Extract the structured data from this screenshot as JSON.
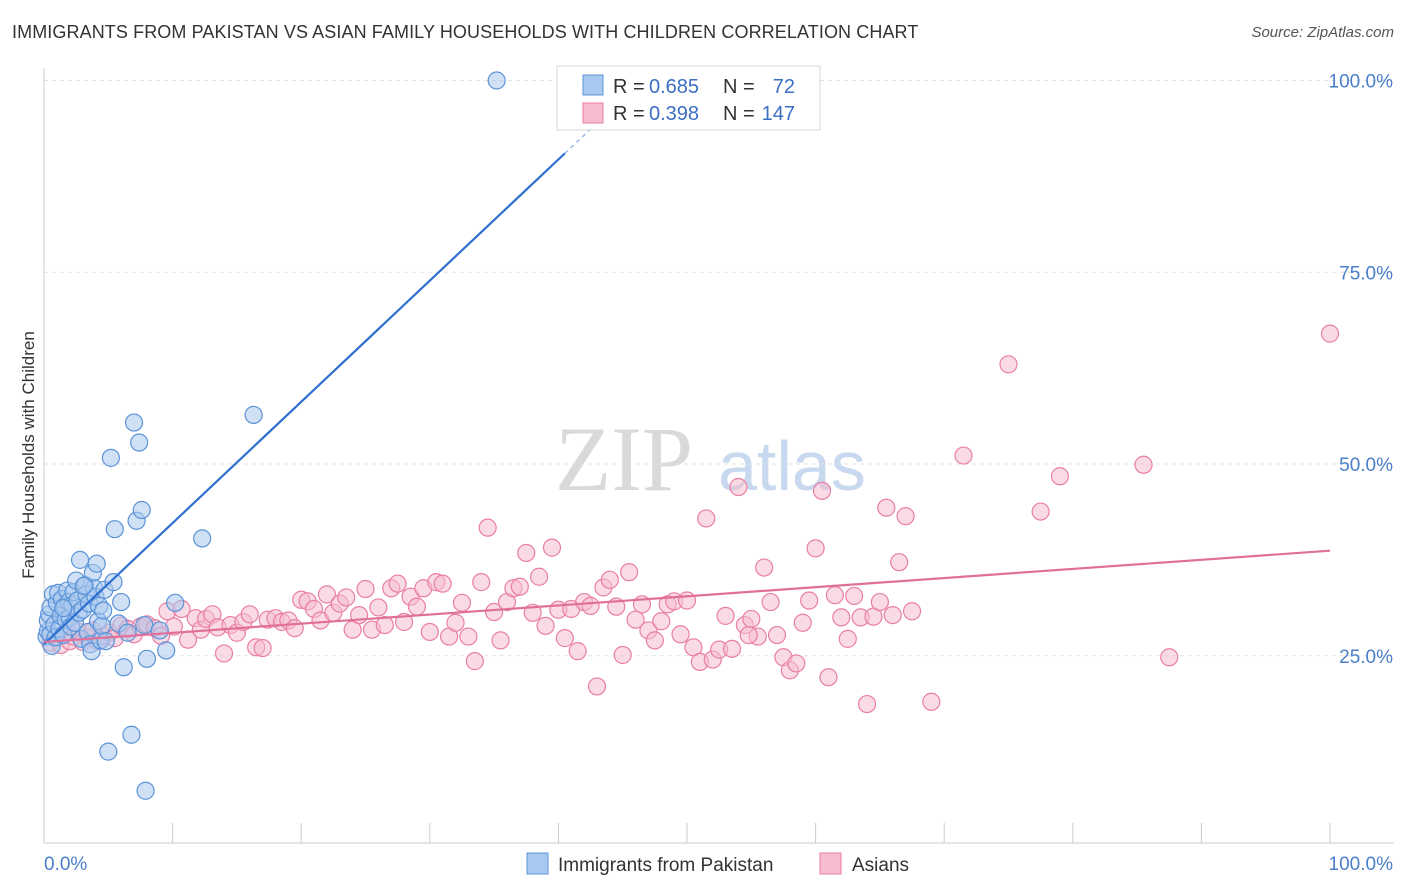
{
  "title": "IMMIGRANTS FROM PAKISTAN VS ASIAN FAMILY HOUSEHOLDS WITH CHILDREN CORRELATION CHART",
  "source": "Source: ZipAtlas.com",
  "watermark": {
    "zip": "ZIP",
    "atlas": "atlas"
  },
  "colors": {
    "blue_fill": "#a9c8ef",
    "blue_stroke": "#5b93d8",
    "blue_line": "#2e6fcf",
    "pink_fill": "#f6bdd0",
    "pink_stroke": "#e97fa4",
    "pink_line": "#e0709a",
    "tick_label": "#4a7ec9"
  },
  "legend_box": {
    "rows": [
      {
        "r_label": "R = ",
        "r_value": "0.685",
        "n_label": "N = ",
        "n_value": "72"
      },
      {
        "r_label": "R = ",
        "r_value": "0.398",
        "n_label": "N = ",
        "n_value": "147"
      }
    ]
  },
  "chart_data": {
    "type": "scatter",
    "title": "IMMIGRANTS FROM PAKISTAN VS ASIAN FAMILY HOUSEHOLDS WITH CHILDREN CORRELATION CHART",
    "xlabel": "",
    "ylabel": "Family Households with Children",
    "xlim": [
      0,
      100
    ],
    "ylim": [
      0,
      102
    ],
    "x_tick_labels": [
      "0.0%",
      "100.0%"
    ],
    "y_tick_labels": [
      "25.0%",
      "50.0%",
      "75.0%",
      "100.0%"
    ],
    "y_ticks": [
      25,
      50,
      75,
      100
    ],
    "grid": true,
    "legend_position": "bottom",
    "series": [
      {
        "name": "Immigrants from Pakistan",
        "r": 0.685,
        "n": 72,
        "trend": {
          "x": [
            0,
            40.5
          ],
          "y": [
            26.5,
            90.5
          ]
        },
        "points": [
          [
            0.2,
            27.5
          ],
          [
            0.3,
            28.2
          ],
          [
            0.3,
            29.6
          ],
          [
            0.4,
            30.4
          ],
          [
            0.5,
            31.3
          ],
          [
            0.5,
            27.8
          ],
          [
            0.6,
            26.3
          ],
          [
            0.7,
            33.0
          ],
          [
            0.8,
            29.0
          ],
          [
            0.9,
            27.4
          ],
          [
            1.0,
            31.9
          ],
          [
            1.1,
            33.2
          ],
          [
            1.2,
            28.5
          ],
          [
            1.3,
            30.2
          ],
          [
            1.4,
            32.4
          ],
          [
            1.5,
            27.7
          ],
          [
            1.6,
            31.4
          ],
          [
            1.7,
            29.7
          ],
          [
            1.8,
            33.5
          ],
          [
            1.9,
            32.0
          ],
          [
            2.0,
            30.0
          ],
          [
            2.1,
            28.8
          ],
          [
            2.2,
            31.6
          ],
          [
            2.3,
            33.3
          ],
          [
            2.4,
            29.3
          ],
          [
            2.5,
            34.8
          ],
          [
            2.6,
            32.2
          ],
          [
            2.7,
            30.6
          ],
          [
            2.8,
            37.5
          ],
          [
            2.9,
            27.2
          ],
          [
            3.0,
            31.0
          ],
          [
            3.2,
            34.2
          ],
          [
            3.3,
            33.0
          ],
          [
            3.4,
            28.1
          ],
          [
            3.5,
            31.8
          ],
          [
            3.6,
            26.5
          ],
          [
            3.7,
            25.6
          ],
          [
            3.8,
            35.8
          ],
          [
            3.9,
            33.8
          ],
          [
            4.0,
            32.7
          ],
          [
            4.1,
            37.0
          ],
          [
            4.2,
            29.5
          ],
          [
            4.3,
            31.5
          ],
          [
            4.4,
            27.0
          ],
          [
            4.5,
            28.9
          ],
          [
            4.6,
            30.9
          ],
          [
            4.7,
            33.6
          ],
          [
            4.8,
            26.9
          ],
          [
            5.0,
            12.5
          ],
          [
            5.2,
            50.8
          ],
          [
            5.4,
            34.6
          ],
          [
            5.5,
            41.5
          ],
          [
            5.8,
            29.2
          ],
          [
            6.0,
            32.0
          ],
          [
            6.2,
            23.5
          ],
          [
            6.5,
            28.0
          ],
          [
            6.8,
            14.7
          ],
          [
            7.0,
            55.4
          ],
          [
            7.2,
            42.6
          ],
          [
            7.4,
            52.8
          ],
          [
            7.6,
            44.0
          ],
          [
            7.8,
            29.0
          ],
          [
            7.9,
            7.4
          ],
          [
            8.0,
            24.6
          ],
          [
            9.0,
            28.3
          ],
          [
            9.5,
            25.7
          ],
          [
            10.2,
            31.9
          ],
          [
            12.3,
            40.3
          ],
          [
            16.3,
            56.4
          ],
          [
            35.2,
            100.0
          ],
          [
            3.1,
            34.1
          ],
          [
            1.5,
            31.2
          ]
        ]
      },
      {
        "name": "Asians",
        "r": 0.398,
        "n": 147,
        "trend": {
          "x": [
            0,
            100
          ],
          "y": [
            26.8,
            38.7
          ]
        },
        "points": [
          [
            0.5,
            26.7
          ],
          [
            1.0,
            27.6
          ],
          [
            1.3,
            26.4
          ],
          [
            1.6,
            27.9
          ],
          [
            2.0,
            26.9
          ],
          [
            2.3,
            27.5
          ],
          [
            2.7,
            28.1
          ],
          [
            3.0,
            26.8
          ],
          [
            3.4,
            27.4
          ],
          [
            3.8,
            28.3
          ],
          [
            4.2,
            26.9
          ],
          [
            4.6,
            27.6
          ],
          [
            5.1,
            28.0
          ],
          [
            5.5,
            27.3
          ],
          [
            6.0,
            28.9
          ],
          [
            6.5,
            28.5
          ],
          [
            7.0,
            27.8
          ],
          [
            7.5,
            28.8
          ],
          [
            8.0,
            29.1
          ],
          [
            8.6,
            28.6
          ],
          [
            9.1,
            27.6
          ],
          [
            9.6,
            30.8
          ],
          [
            10.1,
            28.8
          ],
          [
            10.7,
            31.1
          ],
          [
            11.2,
            27.1
          ],
          [
            11.8,
            29.9
          ],
          [
            12.2,
            28.4
          ],
          [
            12.6,
            29.8
          ],
          [
            13.1,
            30.4
          ],
          [
            13.5,
            28.7
          ],
          [
            14.0,
            25.3
          ],
          [
            14.5,
            29.0
          ],
          [
            15.0,
            28.0
          ],
          [
            15.5,
            29.4
          ],
          [
            16.0,
            30.4
          ],
          [
            16.5,
            26.1
          ],
          [
            17.0,
            26.0
          ],
          [
            17.4,
            29.7
          ],
          [
            18.0,
            29.9
          ],
          [
            18.5,
            29.4
          ],
          [
            19.0,
            29.6
          ],
          [
            19.5,
            28.6
          ],
          [
            20.0,
            32.3
          ],
          [
            20.5,
            32.1
          ],
          [
            21.0,
            31.1
          ],
          [
            21.5,
            29.6
          ],
          [
            22.0,
            33.0
          ],
          [
            22.5,
            30.6
          ],
          [
            23.0,
            31.8
          ],
          [
            23.5,
            32.6
          ],
          [
            24.0,
            28.4
          ],
          [
            24.5,
            30.3
          ],
          [
            25.0,
            33.7
          ],
          [
            25.5,
            28.4
          ],
          [
            26.0,
            31.3
          ],
          [
            26.5,
            29.0
          ],
          [
            27.0,
            33.8
          ],
          [
            27.5,
            34.4
          ],
          [
            28.0,
            29.4
          ],
          [
            28.5,
            32.7
          ],
          [
            29.0,
            31.4
          ],
          [
            29.5,
            33.8
          ],
          [
            30.0,
            28.1
          ],
          [
            30.5,
            34.6
          ],
          [
            31.0,
            34.4
          ],
          [
            31.5,
            27.5
          ],
          [
            32.0,
            29.3
          ],
          [
            32.5,
            31.9
          ],
          [
            33.0,
            27.5
          ],
          [
            33.5,
            24.3
          ],
          [
            34.0,
            34.6
          ],
          [
            34.5,
            41.7
          ],
          [
            35.0,
            30.7
          ],
          [
            35.5,
            27.0
          ],
          [
            36.0,
            32.0
          ],
          [
            36.5,
            33.8
          ],
          [
            37.0,
            34.0
          ],
          [
            37.5,
            38.4
          ],
          [
            38.0,
            30.6
          ],
          [
            38.5,
            35.3
          ],
          [
            39.0,
            28.9
          ],
          [
            39.5,
            39.1
          ],
          [
            40.0,
            31.0
          ],
          [
            40.5,
            27.3
          ],
          [
            41.0,
            31.1
          ],
          [
            41.5,
            25.6
          ],
          [
            42.0,
            32.0
          ],
          [
            42.5,
            31.5
          ],
          [
            43.0,
            21.0
          ],
          [
            43.5,
            33.9
          ],
          [
            44.0,
            34.9
          ],
          [
            44.5,
            31.4
          ],
          [
            45.0,
            25.1
          ],
          [
            45.5,
            35.9
          ],
          [
            46.0,
            29.7
          ],
          [
            46.5,
            31.7
          ],
          [
            47.0,
            28.3
          ],
          [
            47.5,
            27.0
          ],
          [
            48.0,
            29.5
          ],
          [
            48.5,
            31.7
          ],
          [
            49.0,
            32.1
          ],
          [
            49.5,
            27.8
          ],
          [
            50.0,
            32.2
          ],
          [
            50.5,
            26.1
          ],
          [
            51.0,
            24.2
          ],
          [
            51.5,
            42.9
          ],
          [
            52.0,
            24.5
          ],
          [
            52.5,
            25.8
          ],
          [
            53.0,
            30.2
          ],
          [
            53.5,
            25.9
          ],
          [
            54.0,
            47.0
          ],
          [
            54.5,
            29.0
          ],
          [
            55.0,
            29.8
          ],
          [
            55.5,
            27.5
          ],
          [
            56.0,
            36.5
          ],
          [
            56.5,
            32.0
          ],
          [
            57.0,
            27.7
          ],
          [
            57.5,
            24.8
          ],
          [
            58.0,
            23.1
          ],
          [
            58.5,
            24.0
          ],
          [
            59.0,
            29.3
          ],
          [
            59.5,
            32.2
          ],
          [
            60.0,
            39.0
          ],
          [
            60.5,
            46.5
          ],
          [
            61.0,
            22.2
          ],
          [
            61.5,
            32.9
          ],
          [
            62.0,
            30.0
          ],
          [
            62.5,
            27.2
          ],
          [
            63.0,
            32.8
          ],
          [
            63.5,
            30.0
          ],
          [
            64.0,
            18.7
          ],
          [
            64.5,
            30.1
          ],
          [
            65.0,
            32.0
          ],
          [
            65.5,
            44.3
          ],
          [
            66.0,
            30.3
          ],
          [
            66.5,
            37.2
          ],
          [
            67.0,
            43.2
          ],
          [
            67.5,
            30.8
          ],
          [
            69.0,
            19.0
          ],
          [
            71.5,
            51.1
          ],
          [
            75.0,
            63.0
          ],
          [
            77.5,
            43.8
          ],
          [
            79.0,
            48.4
          ],
          [
            85.5,
            49.9
          ],
          [
            87.5,
            24.8
          ],
          [
            100.0,
            67.0
          ],
          [
            54.8,
            27.7
          ]
        ]
      }
    ]
  }
}
